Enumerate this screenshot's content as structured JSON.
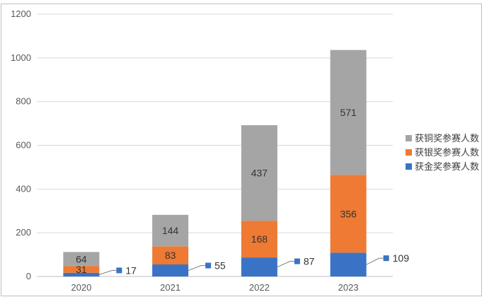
{
  "chart_data": {
    "type": "bar",
    "stacked": true,
    "categories": [
      "2020",
      "2021",
      "2022",
      "2023"
    ],
    "series": [
      {
        "name": "获金奖参赛人数",
        "values": [
          17,
          55,
          87,
          109
        ],
        "color": "#3a73c5"
      },
      {
        "name": "获银奖参赛人数",
        "values": [
          31,
          83,
          168,
          356
        ],
        "color": "#ee7a33"
      },
      {
        "name": "获铜奖参赛人数",
        "values": [
          64,
          144,
          437,
          571
        ],
        "color": "#a5a5a5"
      }
    ],
    "legend_order": [
      "获铜奖参赛人数",
      "获银奖参赛人数",
      "获金奖参赛人数"
    ],
    "ylim": [
      0,
      1200
    ],
    "yticks": [
      0,
      200,
      400,
      600,
      800,
      1000,
      1200
    ],
    "grid": true,
    "legend_position": "right",
    "gold_labels_outside": true,
    "title": "",
    "xlabel": "",
    "ylabel": ""
  }
}
